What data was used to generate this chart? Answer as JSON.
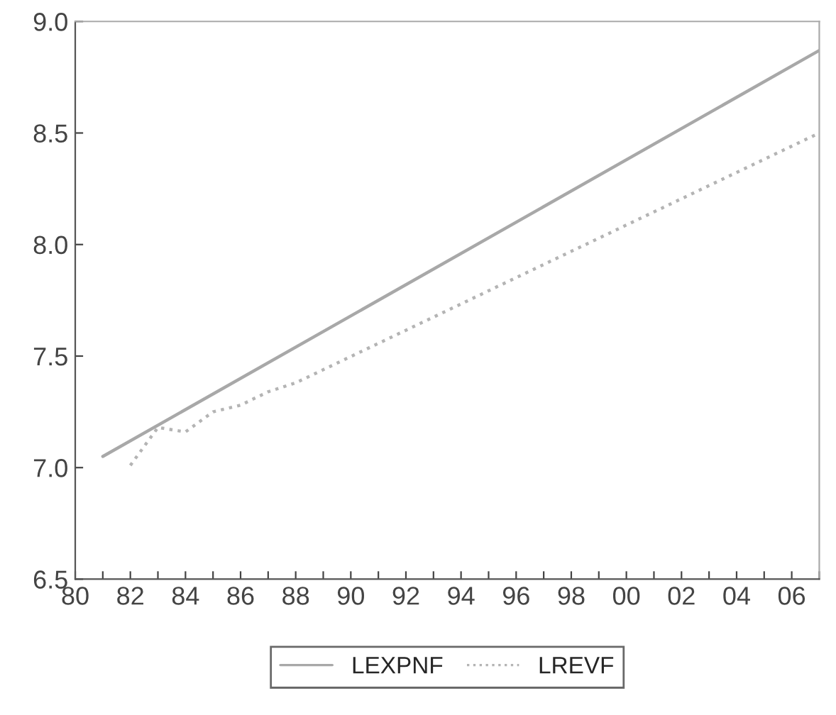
{
  "chart_data": {
    "type": "line",
    "series": [
      {
        "name": "LEXPNF",
        "color": "#a8a8a8",
        "line_style": "solid",
        "x": [
          1981,
          2007
        ],
        "values": [
          7.05,
          8.87
        ]
      },
      {
        "name": "LREVF",
        "color": "#b4b4b4",
        "line_style": "dotted",
        "x": [
          1982,
          1983,
          1984,
          1985,
          1986,
          1987,
          1988,
          2007
        ],
        "values": [
          7.01,
          7.18,
          7.16,
          7.25,
          7.28,
          7.34,
          7.38,
          8.5
        ]
      }
    ],
    "xlim": [
      1980,
      2007
    ],
    "xticks": [
      {
        "value": 1980,
        "label": "80"
      },
      {
        "value": 1981,
        "label": null
      },
      {
        "value": 1982,
        "label": "82"
      },
      {
        "value": 1983,
        "label": null
      },
      {
        "value": 1984,
        "label": "84"
      },
      {
        "value": 1985,
        "label": null
      },
      {
        "value": 1986,
        "label": "86"
      },
      {
        "value": 1987,
        "label": null
      },
      {
        "value": 1988,
        "label": "88"
      },
      {
        "value": 1989,
        "label": null
      },
      {
        "value": 1990,
        "label": "90"
      },
      {
        "value": 1991,
        "label": null
      },
      {
        "value": 1992,
        "label": "92"
      },
      {
        "value": 1993,
        "label": null
      },
      {
        "value": 1994,
        "label": "94"
      },
      {
        "value": 1995,
        "label": null
      },
      {
        "value": 1996,
        "label": "96"
      },
      {
        "value": 1997,
        "label": null
      },
      {
        "value": 1998,
        "label": "98"
      },
      {
        "value": 1999,
        "label": null
      },
      {
        "value": 2000,
        "label": "00"
      },
      {
        "value": 2001,
        "label": null
      },
      {
        "value": 2002,
        "label": "02"
      },
      {
        "value": 2003,
        "label": null
      },
      {
        "value": 2004,
        "label": "04"
      },
      {
        "value": 2005,
        "label": null
      },
      {
        "value": 2006,
        "label": "06"
      },
      {
        "value": 2007,
        "label": null
      }
    ],
    "ylim": [
      6.5,
      9.0
    ],
    "yticks": [
      6.5,
      {
        "value": 7,
        "label": "7.0"
      },
      7.5,
      {
        "value": 8,
        "label": "8.0"
      },
      8.5,
      {
        "value": 9,
        "label": "9.0"
      }
    ],
    "grid": false,
    "legend": "bottom"
  }
}
